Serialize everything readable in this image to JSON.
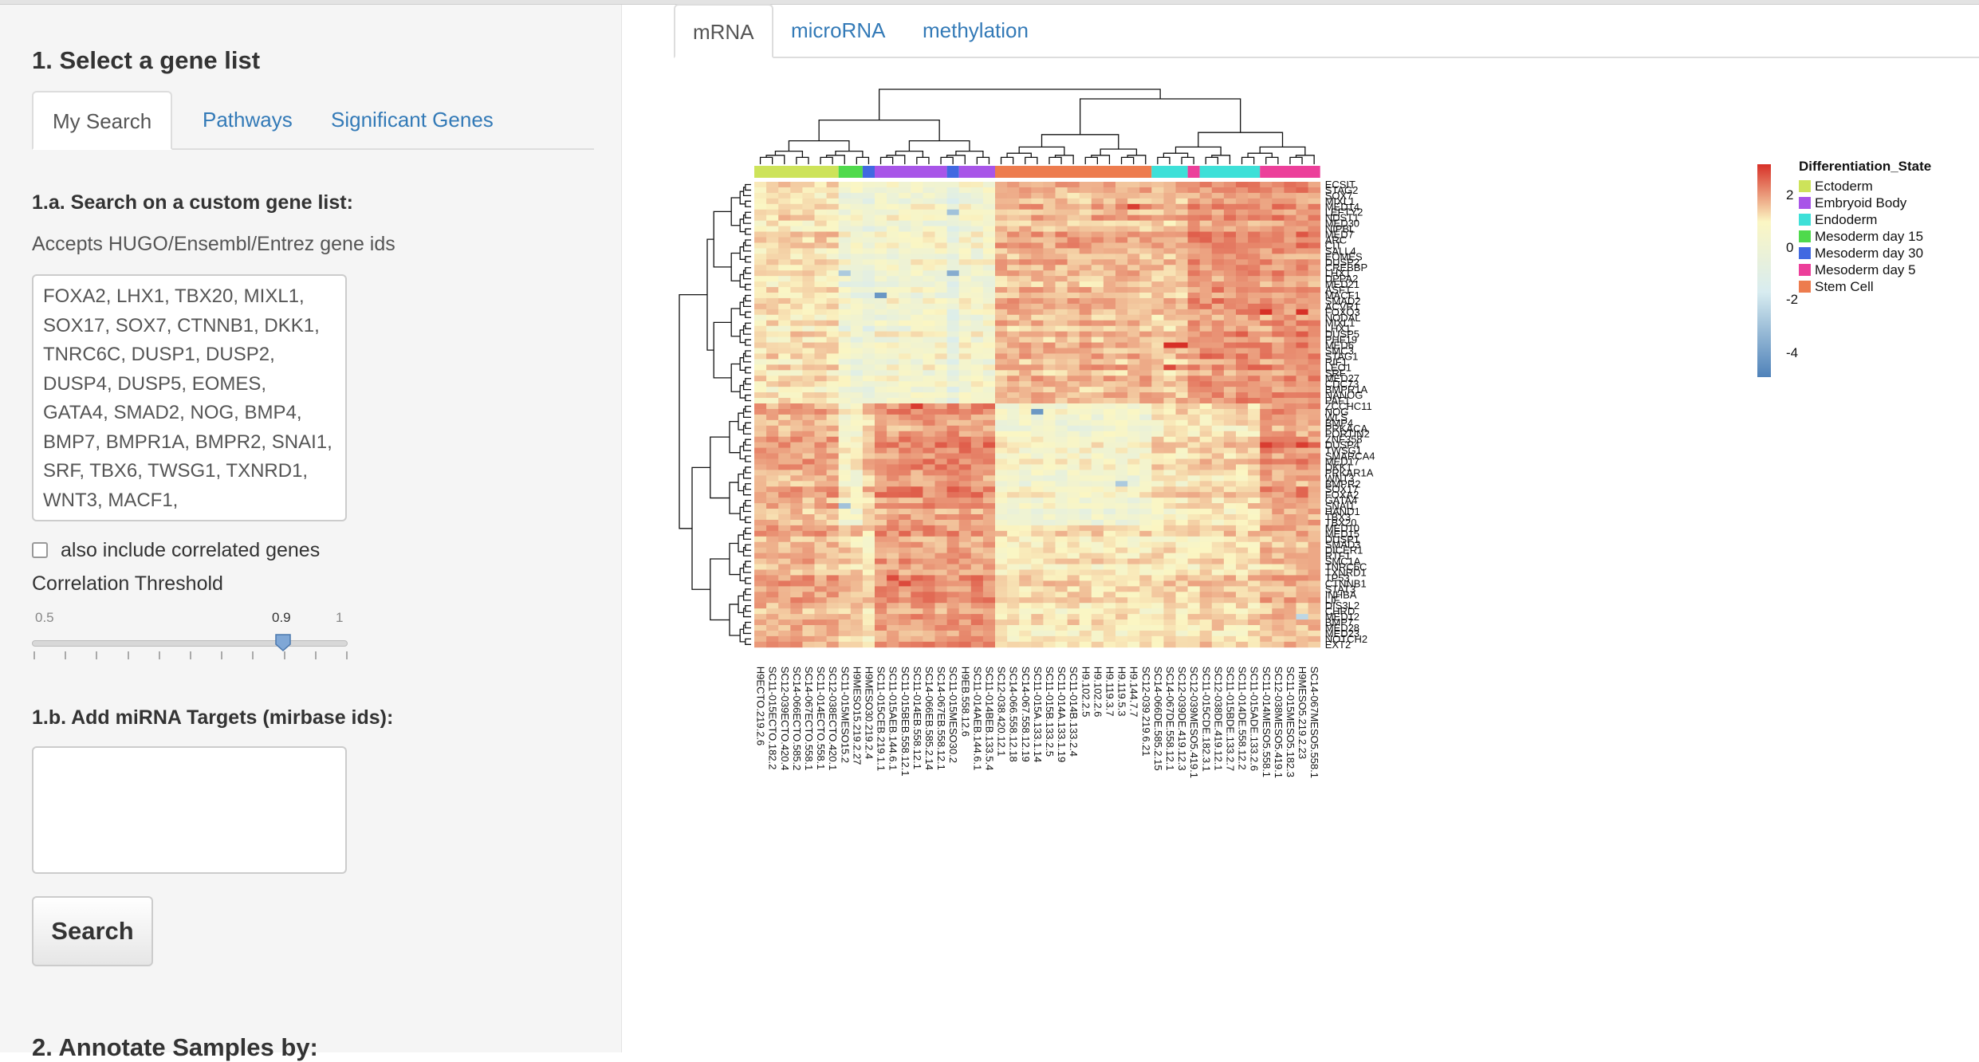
{
  "sidebar": {
    "section1_title": "1. Select a gene list",
    "tabs": [
      {
        "label": "My Search"
      },
      {
        "label": "Pathways"
      },
      {
        "label": "Significant Genes"
      }
    ],
    "search_label": "1.a. Search on a custom gene list:",
    "help_text": "Accepts HUGO/Ensembl/Entrez gene ids",
    "gene_list_value": "FOXA2, LHX1, TBX20, MIXL1, SOX17, SOX7, CTNNB1, DKK1, TNRC6C, DUSP1, DUSP2, DUSP4, DUSP5, EOMES, GATA4, SMAD2, NOG, BMP4, BMP7, BMPR1A, BMPR2, SNAI1, SRF, TBX6, TWSG1, TXNRD1, WNT3, MACF1,",
    "correlated_label": "also include correlated genes",
    "correlated_checked": false,
    "threshold_label": "Correlation Threshold",
    "slider": {
      "min_label": "0.5",
      "value_label": "0.9",
      "max_label": "1",
      "value": 0.9,
      "min": 0.5,
      "max": 1
    },
    "mirna_label": "1.b. Add miRNA Targets (mirbase ids):",
    "mirna_value": "",
    "search_button": "Search",
    "section2_title": "2. Annotate Samples by:"
  },
  "main": {
    "tabs": [
      {
        "label": "mRNA"
      },
      {
        "label": "microRNA"
      },
      {
        "label": "methylation"
      }
    ]
  },
  "chart_data": {
    "type": "heatmap",
    "rows": [
      "ECSIT",
      "STAG2",
      "SOX7",
      "MIXL1",
      "MED14",
      "LEFTY2",
      "NDST1",
      "MED30",
      "NIPBL",
      "MED7",
      "ARC",
      "CIT",
      "SALL4",
      "EOMES",
      "DUSP2",
      "CREBBP",
      "LHX1",
      "DPPA2",
      "MED21",
      "ASF1",
      "MACF1",
      "SMAD2",
      "ACVR1",
      "FOXO3",
      "NODAL",
      "MIXL1",
      "LHX1",
      "DUSP5",
      "PHF19",
      "MED6",
      "SMC3",
      "STAG1",
      "RIF1",
      "LEO1",
      "SRF",
      "MED27",
      "CDC73",
      "BMPR1A",
      "NANOG",
      "PAF1",
      "ZCCHC11",
      "NOG",
      "WLS",
      "BMP4",
      "PRKACA",
      "PORTIN2",
      "ZNF358",
      "DUSP4",
      "TWSG1",
      "SMARCA4",
      "MED17",
      "DKK1",
      "PRKAR1A",
      "WNT3",
      "BMPR2",
      "SOX17",
      "FOXA2",
      "GATA4",
      "SNAI1",
      "HAND1",
      "TBX3",
      "TBX20",
      "MED10",
      "MED15",
      "DUSP1",
      "SMAD3",
      "DICER1",
      "RTF1",
      "SMC1A",
      "TNRC6C",
      "TXNRD1",
      "TP53",
      "CTNNB1",
      "STAT3",
      "INHBA",
      "LIF",
      "DIS3L2",
      "CHRD",
      "MED12",
      "BMP7",
      "MED28",
      "MED23",
      "NOTCH2",
      "EXT2"
    ],
    "columns": [
      "H9ECTO.219.2.6",
      "SC11-015ECTO.182.2",
      "SC12-039ECTO.420.4",
      "SC14-066ECTO.585.2",
      "SC14-067ECTO.558.1",
      "SC11-014ECTO.558.1",
      "SC12-038ECTO.420.1",
      "SC11-015MESO15.2",
      "H9MESO15.219.2.27",
      "H9MESO30.219.2.4",
      "SC11-015CEB.219.1.1",
      "SC11-015AEB.144.6.1",
      "SC11-015BEB.558.12.1",
      "SC11-014EB.558.12.1",
      "SC14-066EB.585.2.14",
      "SC14-067EB.558.12.1",
      "SC11-015MESO30.2",
      "H9EB.558.12.6",
      "SC11-014AEB.144.6.1",
      "SC11-014BEB.133.5.4",
      "SC12-038.420.12.1",
      "SC14-066.558.12.18",
      "SC14-067.558.12.19",
      "SC11-015A.133.1.14",
      "SC11-015B.133.2.5",
      "SC11-014A.133.1.19",
      "SC11-014B.133.2.4",
      "H9.102.2.5",
      "H9.102.2.6",
      "H9.119.3.7",
      "H9.119.5.3",
      "H9.144.7.7",
      "SC12-039.219.6.21",
      "SC14-066DE.585.2.15",
      "SC14-067DE.558.12.1",
      "SC12-039DE.419.12.3",
      "SC12-039MESO5.419.1",
      "SC11-015CDE.182.3.1",
      "SC12-038DE.419.12.1",
      "SC11-015BDE.133.2.7",
      "SC11-014DE.558.12.2",
      "SC11-015ADE.133.2.6",
      "SC11-014MESO5.558.1",
      "SC12-038MESO5.419.1",
      "SC11-015MESO5.182.3",
      "H9MESO5.219.2.23",
      "SC14-067MESO5.558.1"
    ],
    "column_groups": [
      {
        "name": "Ectoderm",
        "count": 7,
        "color": "#cde35a"
      },
      {
        "name": "Mesoderm day 15",
        "count": 2,
        "color": "#4fda4c"
      },
      {
        "name": "Mesoderm day 30",
        "count": 1,
        "color": "#4169e1"
      },
      {
        "name": "Embryoid Body",
        "count": 6,
        "color": "#a855e8"
      },
      {
        "name": "Mesoderm day 30",
        "count": 1,
        "color": "#4169e1"
      },
      {
        "name": "Embryoid Body",
        "count": 3,
        "color": "#a855e8"
      },
      {
        "name": "Stem Cell",
        "count": 13,
        "color": "#ed7c4e"
      },
      {
        "name": "Endoderm",
        "count": 3,
        "color": "#3ee0d8"
      },
      {
        "name": "Mesoderm day 5",
        "count": 1,
        "color": "#ec3f9a"
      },
      {
        "name": "Endoderm",
        "count": 5,
        "color": "#3ee0d8"
      },
      {
        "name": "Mesoderm day 5",
        "count": 5,
        "color": "#ec3f9a"
      }
    ],
    "legend": {
      "title": "Differentiation_State",
      "entries": [
        {
          "name": "Ectoderm",
          "color": "#cde35a"
        },
        {
          "name": "Embryoid Body",
          "color": "#a855e8"
        },
        {
          "name": "Endoderm",
          "color": "#3ee0d8"
        },
        {
          "name": "Mesoderm day 15",
          "color": "#4fda4c"
        },
        {
          "name": "Mesoderm day 30",
          "color": "#4169e1"
        },
        {
          "name": "Mesoderm day 5",
          "color": "#ec3f9a"
        },
        {
          "name": "Stem Cell",
          "color": "#ed7c4e"
        }
      ]
    },
    "color_scale": {
      "ticks": [
        "2",
        "0",
        "-2",
        "-4"
      ],
      "min": -4.5,
      "max": 3,
      "low_color": "#4f82b9",
      "mid_color": "#fbf6c3",
      "high_color": "#d73027"
    },
    "row_blocks": [
      {
        "rows": [
          0,
          39
        ],
        "group_values": [
          0.3,
          -0.6,
          -0.8,
          -0.4,
          -1.1,
          -0.4,
          1.0,
          0.8,
          1.4,
          1.5,
          1.5
        ]
      },
      {
        "rows": [
          40,
          61
        ],
        "group_values": [
          1.1,
          -0.2,
          0.6,
          1.4,
          1.5,
          1.5,
          -0.4,
          0.2,
          0.3,
          0.4,
          1.3
        ]
      },
      {
        "rows": [
          62,
          83
        ],
        "group_values": [
          1.0,
          0.6,
          0.2,
          1.3,
          1.2,
          1.3,
          0.2,
          0.3,
          0.3,
          0.4,
          0.9
        ]
      }
    ],
    "strong_cells": [
      {
        "row": 20,
        "col": 10,
        "value": -4.0
      },
      {
        "row": 41,
        "col": 23,
        "value": -4.0
      },
      {
        "row": 5,
        "col": 16,
        "value": -3.0
      },
      {
        "row": 16,
        "col": 16,
        "value": -3.5
      },
      {
        "row": 16,
        "col": 7,
        "value": -2.8
      },
      {
        "row": 23,
        "col": 42,
        "value": 3.0
      },
      {
        "row": 23,
        "col": 45,
        "value": 3.0
      },
      {
        "row": 29,
        "col": 34,
        "value": 3.0
      },
      {
        "row": 29,
        "col": 35,
        "value": 3.0
      },
      {
        "row": 4,
        "col": 31,
        "value": 2.8
      },
      {
        "row": 40,
        "col": 13,
        "value": 2.8
      },
      {
        "row": 58,
        "col": 7,
        "value": -3.0
      },
      {
        "row": 78,
        "col": 45,
        "value": -2.5
      },
      {
        "row": 54,
        "col": 30,
        "value": -2.8
      },
      {
        "row": 71,
        "col": 11,
        "value": 2.6
      },
      {
        "row": 72,
        "col": 12,
        "value": 2.6
      },
      {
        "row": 33,
        "col": 34,
        "value": 2.6
      },
      {
        "row": 47,
        "col": 42,
        "value": 2.8
      },
      {
        "row": 47,
        "col": 45,
        "value": 2.8
      }
    ]
  }
}
